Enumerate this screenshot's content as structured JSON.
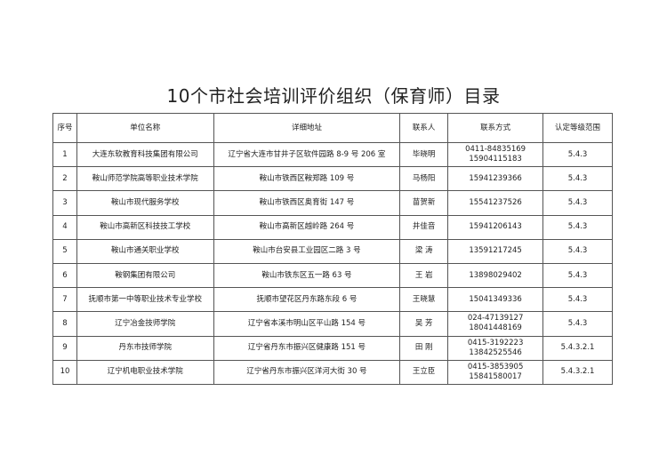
{
  "title": "10个市社会培训评价组织（保育师）目录",
  "headers": [
    "序号",
    "单位名称",
    "详细地址",
    "联系人",
    "联系方式",
    "认定等级范围"
  ],
  "rows": [
    {
      "no": "1",
      "name": "大连东软教育科技集团有限公司",
      "address": "辽宁省大连市甘井子区软件园路 8-9 号 206 室",
      "contact": "毕晓明",
      "phone": [
        "0411-84835169",
        "15904115183"
      ],
      "level": "5.4.3"
    },
    {
      "no": "2",
      "name": "鞍山师范学院高等职业技术学院",
      "address": "鞍山市铁西区鞍郑路 109 号",
      "contact": "马杨阳",
      "phone": [
        "15941239366"
      ],
      "level": "5.4.3"
    },
    {
      "no": "3",
      "name": "鞍山市现代服务学校",
      "address": "鞍山市铁西区奥育街 147 号",
      "contact": "苗贺新",
      "phone": [
        "15541237526"
      ],
      "level": "5.4.3"
    },
    {
      "no": "4",
      "name": "鞍山市高新区科技技工学校",
      "address": "鞍山市高新区越岭路 264 号",
      "contact": "井佳音",
      "phone": [
        "15941206143"
      ],
      "level": "5.4.3"
    },
    {
      "no": "5",
      "name": "鞍山市通关职业学校",
      "address": "鞍山市台安县工业园区二路 3 号",
      "contact": "梁 涛",
      "phone": [
        "13591217245"
      ],
      "level": "5.4.3"
    },
    {
      "no": "6",
      "name": "鞍钢集团有限公司",
      "address": "鞍山市铁东区五一路 63 号",
      "contact": "王 岩",
      "phone": [
        "13898029402"
      ],
      "level": "5.4.3"
    },
    {
      "no": "7",
      "name": "抚顺市第一中等职业技术专业学校",
      "address": "抚顺市望花区丹东路东段 6 号",
      "contact": "王晓慧",
      "phone": [
        "15041349336"
      ],
      "level": "5.4.3"
    },
    {
      "no": "8",
      "name": "辽宁冶金技师学院",
      "address": "辽宁省本溪市明山区平山路 154 号",
      "contact": "吴 芳",
      "phone": [
        "024-47139127",
        "18041448169"
      ],
      "level": "5.4.3"
    },
    {
      "no": "9",
      "name": "丹东市技师学院",
      "address": "辽宁省丹东市振兴区健康路 151 号",
      "contact": "田 刚",
      "phone": [
        "0415-3192223",
        "13842525546"
      ],
      "level": "5.4.3.2.1"
    },
    {
      "no": "10",
      "name": "辽宁机电职业技术学院",
      "address": "辽宁省丹东市振兴区洋河大街 30 号",
      "contact": "王立臣",
      "phone": [
        "0415-3853905",
        "15841580017"
      ],
      "level": "5.4.3.2.1"
    }
  ]
}
